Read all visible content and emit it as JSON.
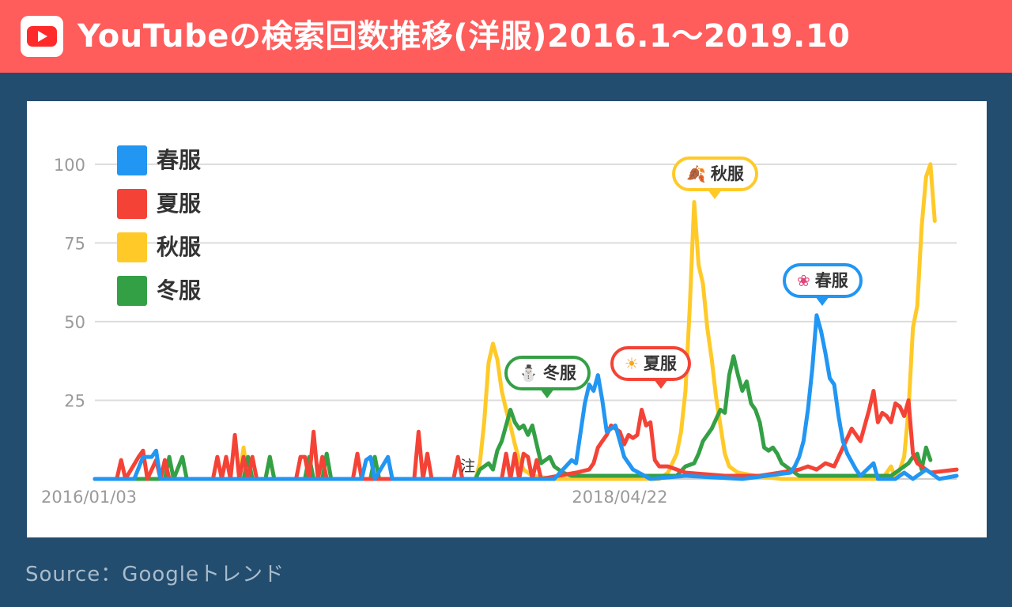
{
  "header": {
    "title": "YouTubeの検索回数推移(洋服)2016.1〜2019.10",
    "logo_icon": "youtube-play-icon"
  },
  "source": "Source：Googleトレンド",
  "note_mark": "注",
  "colors": {
    "header_bg": "#ff5c5c",
    "page_bg": "#234d6f",
    "spring": "#2196f3",
    "summer": "#f44336",
    "autumn": "#ffca28",
    "winter": "#34a045"
  },
  "callouts": [
    {
      "label": "冬服",
      "icon": "snowman-icon",
      "glyph": "⛄",
      "color": "#34a045"
    },
    {
      "label": "夏服",
      "icon": "sun-icon",
      "glyph": "☀",
      "color": "#f44336"
    },
    {
      "label": "秋服",
      "icon": "autumn-leaves-icon",
      "glyph": "🍂",
      "color": "#ffca28"
    },
    {
      "label": "春服",
      "icon": "cherry-blossom-icon",
      "glyph": "❀",
      "color": "#2196f3"
    }
  ],
  "chart_data": {
    "type": "line",
    "title": "",
    "xlabel": "",
    "ylabel": "",
    "ylim": [
      0,
      110
    ],
    "yticks": [
      25,
      50,
      75,
      100
    ],
    "x_tick_labels": [
      "2016/01/03",
      "2018/04/22"
    ],
    "grid": true,
    "legend_position": "top-left",
    "series": [
      {
        "name": "春服",
        "color": "#2196f3",
        "points": [
          [
            "2016-01-03",
            0
          ],
          [
            "2016-03-06",
            0
          ],
          [
            "2016-03-20",
            7
          ],
          [
            "2016-04-03",
            7
          ],
          [
            "2016-04-10",
            9
          ],
          [
            "2016-04-17",
            0
          ],
          [
            "2017-03-05",
            0
          ],
          [
            "2017-03-12",
            6
          ],
          [
            "2017-03-19",
            7
          ],
          [
            "2017-03-26",
            0
          ],
          [
            "2017-04-16",
            7
          ],
          [
            "2017-04-23",
            0
          ],
          [
            "2017-08-06",
            0
          ],
          [
            "2017-10-15",
            0
          ],
          [
            "2018-01-07",
            0
          ],
          [
            "2018-02-04",
            6
          ],
          [
            "2018-02-11",
            5
          ],
          [
            "2018-02-25",
            24
          ],
          [
            "2018-03-04",
            30
          ],
          [
            "2018-03-11",
            28
          ],
          [
            "2018-03-18",
            33
          ],
          [
            "2018-03-25",
            25
          ],
          [
            "2018-04-01",
            15
          ],
          [
            "2018-04-08",
            16
          ],
          [
            "2018-04-15",
            17
          ],
          [
            "2018-04-22",
            12
          ],
          [
            "2018-04-29",
            7
          ],
          [
            "2018-05-13",
            3
          ],
          [
            "2018-06-10",
            0
          ],
          [
            "2018-08-05",
            1
          ],
          [
            "2018-11-04",
            0
          ],
          [
            "2019-01-20",
            2
          ],
          [
            "2019-01-27",
            4
          ],
          [
            "2019-02-03",
            7
          ],
          [
            "2019-02-10",
            12
          ],
          [
            "2019-02-17",
            22
          ],
          [
            "2019-02-24",
            35
          ],
          [
            "2019-03-03",
            52
          ],
          [
            "2019-03-10",
            47
          ],
          [
            "2019-03-17",
            40
          ],
          [
            "2019-03-24",
            32
          ],
          [
            "2019-03-31",
            30
          ],
          [
            "2019-04-07",
            20
          ],
          [
            "2019-04-14",
            12
          ],
          [
            "2019-04-21",
            8
          ],
          [
            "2019-05-05",
            3
          ],
          [
            "2019-05-12",
            1
          ],
          [
            "2019-06-02",
            5
          ],
          [
            "2019-06-09",
            0
          ],
          [
            "2019-07-07",
            0
          ],
          [
            "2019-07-21",
            2
          ],
          [
            "2019-08-04",
            0
          ],
          [
            "2019-08-25",
            3
          ],
          [
            "2019-09-15",
            0
          ],
          [
            "2019-10-13",
            1
          ]
        ]
      },
      {
        "name": "夏服",
        "color": "#f44336",
        "points": [
          [
            "2016-01-03",
            0
          ],
          [
            "2016-02-07",
            0
          ],
          [
            "2016-02-14",
            6
          ],
          [
            "2016-02-21",
            0
          ],
          [
            "2016-03-13",
            7
          ],
          [
            "2016-03-20",
            9
          ],
          [
            "2016-03-27",
            0
          ],
          [
            "2016-04-10",
            6
          ],
          [
            "2016-04-17",
            0
          ],
          [
            "2016-04-24",
            6
          ],
          [
            "2016-05-01",
            0
          ],
          [
            "2016-07-10",
            0
          ],
          [
            "2016-07-17",
            7
          ],
          [
            "2016-07-24",
            0
          ],
          [
            "2016-07-31",
            7
          ],
          [
            "2016-08-07",
            0
          ],
          [
            "2016-08-14",
            14
          ],
          [
            "2016-08-21",
            0
          ],
          [
            "2016-08-28",
            7
          ],
          [
            "2016-09-04",
            0
          ],
          [
            "2016-09-11",
            7
          ],
          [
            "2016-09-18",
            0
          ],
          [
            "2016-11-20",
            0
          ],
          [
            "2016-11-27",
            7
          ],
          [
            "2016-12-04",
            7
          ],
          [
            "2016-12-11",
            0
          ],
          [
            "2016-12-18",
            15
          ],
          [
            "2016-12-25",
            0
          ],
          [
            "2017-01-01",
            7
          ],
          [
            "2017-01-08",
            0
          ],
          [
            "2017-02-19",
            0
          ],
          [
            "2017-02-26",
            8
          ],
          [
            "2017-03-05",
            0
          ],
          [
            "2017-05-28",
            0
          ],
          [
            "2017-06-04",
            15
          ],
          [
            "2017-06-11",
            0
          ],
          [
            "2017-06-18",
            8
          ],
          [
            "2017-06-25",
            0
          ],
          [
            "2017-07-30",
            0
          ],
          [
            "2017-08-06",
            7
          ],
          [
            "2017-08-13",
            0
          ],
          [
            "2017-10-15",
            0
          ],
          [
            "2017-10-22",
            8
          ],
          [
            "2017-10-29",
            0
          ],
          [
            "2017-11-05",
            8
          ],
          [
            "2017-11-12",
            0
          ],
          [
            "2017-11-19",
            8
          ],
          [
            "2017-11-26",
            7
          ],
          [
            "2017-12-03",
            0
          ],
          [
            "2017-12-10",
            6
          ],
          [
            "2017-12-17",
            0
          ],
          [
            "2018-02-11",
            2
          ],
          [
            "2018-03-04",
            3
          ],
          [
            "2018-03-11",
            5
          ],
          [
            "2018-03-18",
            10
          ],
          [
            "2018-03-25",
            12
          ],
          [
            "2018-04-01",
            14
          ],
          [
            "2018-04-08",
            17
          ],
          [
            "2018-04-15",
            16
          ],
          [
            "2018-04-22",
            15
          ],
          [
            "2018-04-29",
            11
          ],
          [
            "2018-05-06",
            14
          ],
          [
            "2018-05-13",
            13
          ],
          [
            "2018-05-20",
            14
          ],
          [
            "2018-05-27",
            22
          ],
          [
            "2018-06-03",
            17
          ],
          [
            "2018-06-10",
            18
          ],
          [
            "2018-06-17",
            6
          ],
          [
            "2018-06-24",
            4
          ],
          [
            "2018-07-08",
            4
          ],
          [
            "2018-08-05",
            2
          ],
          [
            "2018-10-07",
            1
          ],
          [
            "2018-12-02",
            1
          ],
          [
            "2019-02-03",
            3
          ],
          [
            "2019-02-17",
            4
          ],
          [
            "2019-03-03",
            3
          ],
          [
            "2019-03-17",
            5
          ],
          [
            "2019-03-31",
            4
          ],
          [
            "2019-04-14",
            10
          ],
          [
            "2019-04-28",
            16
          ],
          [
            "2019-05-12",
            12
          ],
          [
            "2019-05-19",
            17
          ],
          [
            "2019-05-26",
            22
          ],
          [
            "2019-06-02",
            28
          ],
          [
            "2019-06-09",
            18
          ],
          [
            "2019-06-16",
            21
          ],
          [
            "2019-06-23",
            20
          ],
          [
            "2019-06-30",
            18
          ],
          [
            "2019-07-07",
            24
          ],
          [
            "2019-07-14",
            23
          ],
          [
            "2019-07-21",
            20
          ],
          [
            "2019-07-28",
            25
          ],
          [
            "2019-08-04",
            8
          ],
          [
            "2019-08-11",
            5
          ],
          [
            "2019-08-18",
            4
          ],
          [
            "2019-09-01",
            2
          ],
          [
            "2019-10-13",
            3
          ]
        ]
      },
      {
        "name": "秋服",
        "color": "#ffca28",
        "points": [
          [
            "2016-01-03",
            0
          ],
          [
            "2016-08-21",
            0
          ],
          [
            "2016-08-28",
            10
          ],
          [
            "2016-09-04",
            0
          ],
          [
            "2016-10-02",
            0
          ],
          [
            "2016-10-09",
            7
          ],
          [
            "2016-10-16",
            0
          ],
          [
            "2017-08-20",
            0
          ],
          [
            "2017-09-03",
            0
          ],
          [
            "2017-09-10",
            5
          ],
          [
            "2017-09-17",
            18
          ],
          [
            "2017-09-24",
            37
          ],
          [
            "2017-10-01",
            43
          ],
          [
            "2017-10-08",
            38
          ],
          [
            "2017-10-15",
            28
          ],
          [
            "2017-10-22",
            22
          ],
          [
            "2017-10-29",
            17
          ],
          [
            "2017-11-05",
            11
          ],
          [
            "2017-11-12",
            6
          ],
          [
            "2017-11-19",
            3
          ],
          [
            "2017-12-03",
            1
          ],
          [
            "2018-01-07",
            0
          ],
          [
            "2018-06-24",
            0
          ],
          [
            "2018-07-08",
            2
          ],
          [
            "2018-07-22",
            8
          ],
          [
            "2018-07-29",
            15
          ],
          [
            "2018-08-05",
            28
          ],
          [
            "2018-08-12",
            55
          ],
          [
            "2018-08-19",
            88
          ],
          [
            "2018-08-26",
            68
          ],
          [
            "2018-09-02",
            62
          ],
          [
            "2018-09-09",
            48
          ],
          [
            "2018-09-16",
            38
          ],
          [
            "2018-09-23",
            26
          ],
          [
            "2018-09-30",
            17
          ],
          [
            "2018-10-07",
            8
          ],
          [
            "2018-10-14",
            4
          ],
          [
            "2018-10-28",
            2
          ],
          [
            "2018-11-25",
            1
          ],
          [
            "2019-01-06",
            0
          ],
          [
            "2019-06-16",
            0
          ],
          [
            "2019-06-30",
            4
          ],
          [
            "2019-07-07",
            0
          ],
          [
            "2019-07-14",
            3
          ],
          [
            "2019-07-21",
            7
          ],
          [
            "2019-07-28",
            22
          ],
          [
            "2019-08-04",
            48
          ],
          [
            "2019-08-11",
            55
          ],
          [
            "2019-08-18",
            80
          ],
          [
            "2019-08-25",
            96
          ],
          [
            "2019-09-01",
            100
          ],
          [
            "2019-09-08",
            82
          ]
        ]
      },
      {
        "name": "冬服",
        "color": "#34a045",
        "points": [
          [
            "2016-01-03",
            0
          ],
          [
            "2016-04-24",
            0
          ],
          [
            "2016-05-01",
            7
          ],
          [
            "2016-05-08",
            0
          ],
          [
            "2016-05-22",
            7
          ],
          [
            "2016-05-29",
            0
          ],
          [
            "2016-08-28",
            0
          ],
          [
            "2016-09-04",
            7
          ],
          [
            "2016-09-11",
            0
          ],
          [
            "2016-10-02",
            0
          ],
          [
            "2016-10-09",
            7
          ],
          [
            "2016-10-16",
            0
          ],
          [
            "2016-12-04",
            0
          ],
          [
            "2016-12-11",
            7
          ],
          [
            "2016-12-18",
            0
          ],
          [
            "2017-01-01",
            0
          ],
          [
            "2017-01-08",
            8
          ],
          [
            "2017-01-15",
            0
          ],
          [
            "2017-03-19",
            0
          ],
          [
            "2017-03-26",
            7
          ],
          [
            "2017-04-02",
            0
          ],
          [
            "2017-09-03",
            0
          ],
          [
            "2017-09-10",
            3
          ],
          [
            "2017-09-24",
            5
          ],
          [
            "2017-10-01",
            3
          ],
          [
            "2017-10-08",
            9
          ],
          [
            "2017-10-15",
            12
          ],
          [
            "2017-10-22",
            17
          ],
          [
            "2017-10-29",
            22
          ],
          [
            "2017-11-05",
            18
          ],
          [
            "2017-11-12",
            16
          ],
          [
            "2017-11-19",
            17
          ],
          [
            "2017-11-26",
            14
          ],
          [
            "2017-12-03",
            17
          ],
          [
            "2017-12-10",
            11
          ],
          [
            "2017-12-17",
            5
          ],
          [
            "2017-12-24",
            6
          ],
          [
            "2017-12-31",
            7
          ],
          [
            "2018-01-07",
            4
          ],
          [
            "2018-01-21",
            2
          ],
          [
            "2018-02-04",
            1
          ],
          [
            "2018-04-01",
            1
          ],
          [
            "2018-06-10",
            1
          ],
          [
            "2018-07-22",
            1
          ],
          [
            "2018-08-05",
            4
          ],
          [
            "2018-08-19",
            5
          ],
          [
            "2018-08-26",
            8
          ],
          [
            "2018-09-02",
            12
          ],
          [
            "2018-09-16",
            16
          ],
          [
            "2018-09-30",
            22
          ],
          [
            "2018-10-07",
            21
          ],
          [
            "2018-10-14",
            33
          ],
          [
            "2018-10-21",
            39
          ],
          [
            "2018-10-28",
            33
          ],
          [
            "2018-11-04",
            28
          ],
          [
            "2018-11-11",
            31
          ],
          [
            "2018-11-18",
            24
          ],
          [
            "2018-11-25",
            22
          ],
          [
            "2018-12-02",
            18
          ],
          [
            "2018-12-09",
            10
          ],
          [
            "2018-12-16",
            9
          ],
          [
            "2018-12-23",
            10
          ],
          [
            "2018-12-30",
            8
          ],
          [
            "2019-01-06",
            5
          ],
          [
            "2019-01-20",
            3
          ],
          [
            "2019-02-03",
            1
          ],
          [
            "2019-06-30",
            1
          ],
          [
            "2019-07-14",
            3
          ],
          [
            "2019-07-28",
            5
          ],
          [
            "2019-08-04",
            7
          ],
          [
            "2019-08-11",
            8
          ],
          [
            "2019-08-18",
            3
          ],
          [
            "2019-08-25",
            10
          ],
          [
            "2019-09-01",
            6
          ]
        ]
      }
    ]
  }
}
